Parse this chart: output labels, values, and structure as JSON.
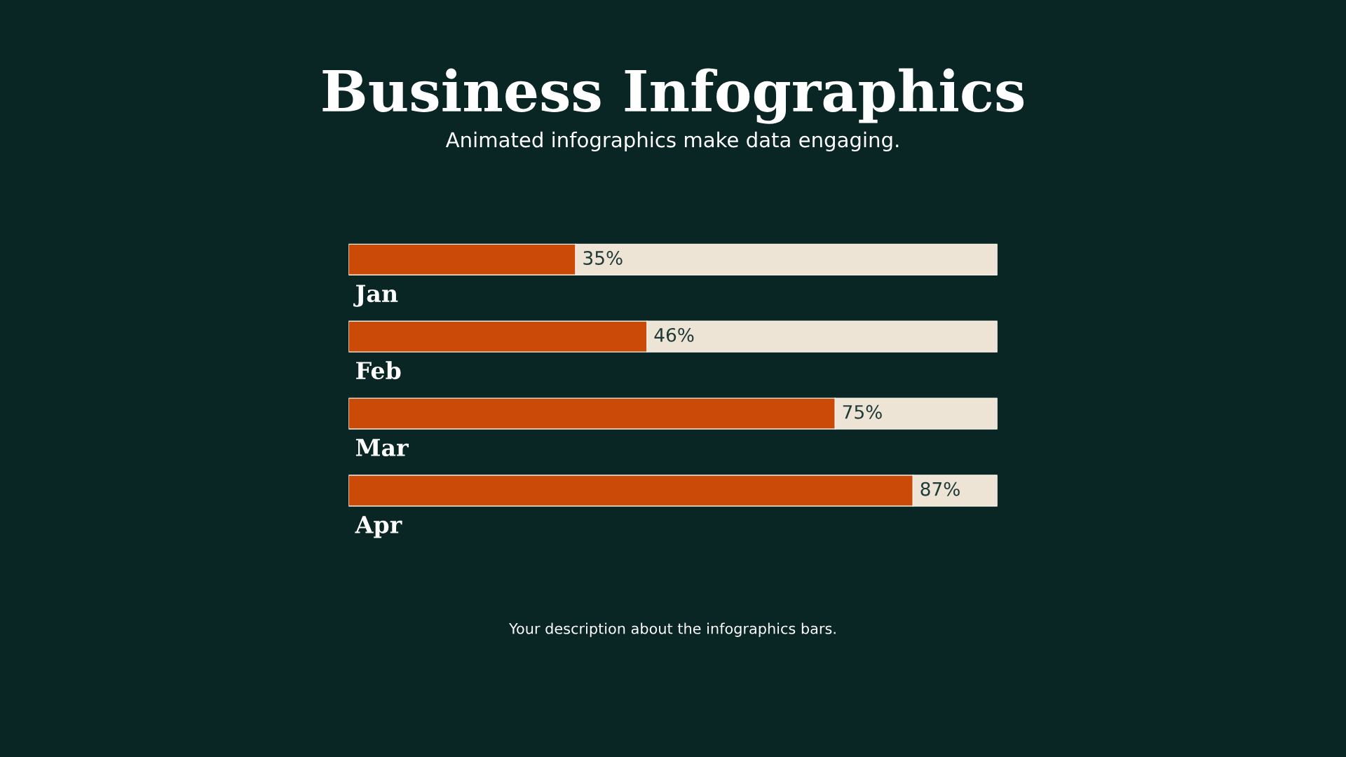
{
  "chart_data": {
    "type": "bar",
    "orientation": "horizontal",
    "stacked": true,
    "title": "Business Infographics",
    "subtitle": "Animated infographics make data engaging.",
    "annotations": [
      "Your description about the infographics bars."
    ],
    "categories": [
      "Jan",
      "Feb",
      "Mar",
      "Apr"
    ],
    "xlim": [
      0,
      100
    ],
    "series": [
      {
        "color": "#cc4a08",
        "values": [
          35,
          46,
          75,
          87
        ],
        "value_labels": [
          "35%",
          "46%",
          "75%",
          "87%"
        ]
      },
      {
        "color": "#ede4d6",
        "values": [
          65,
          54,
          25,
          13
        ]
      }
    ]
  }
}
